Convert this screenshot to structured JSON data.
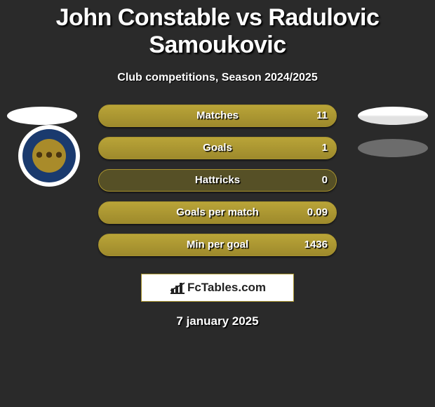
{
  "title": "John Constable vs Radulovic Samoukovic",
  "subtitle": "Club competitions, Season 2024/2025",
  "date": "7 january 2025",
  "brand": "FcTables.com",
  "colors": {
    "background": "#2a2a2a",
    "bar_border": "#a8932f",
    "bar_fill_top": "#b9a438",
    "bar_fill_bottom": "#9e8a2c",
    "bar_track": "#565026",
    "club_ring": "#1a3a6e",
    "club_inner": "#a98b2a"
  },
  "left_badge": {
    "visible_rows": [
      0
    ],
    "color": "#ffffff"
  },
  "right_badge": {
    "rows": [
      {
        "style": "white"
      },
      {
        "style": "gray",
        "color": "#6c6c6c"
      }
    ]
  },
  "stats": [
    {
      "label": "Matches",
      "value": "11",
      "fill_pct": 100
    },
    {
      "label": "Goals",
      "value": "1",
      "fill_pct": 100
    },
    {
      "label": "Hattricks",
      "value": "0",
      "fill_pct": 0
    },
    {
      "label": "Goals per match",
      "value": "0.09",
      "fill_pct": 100
    },
    {
      "label": "Min per goal",
      "value": "1436",
      "fill_pct": 100
    }
  ]
}
